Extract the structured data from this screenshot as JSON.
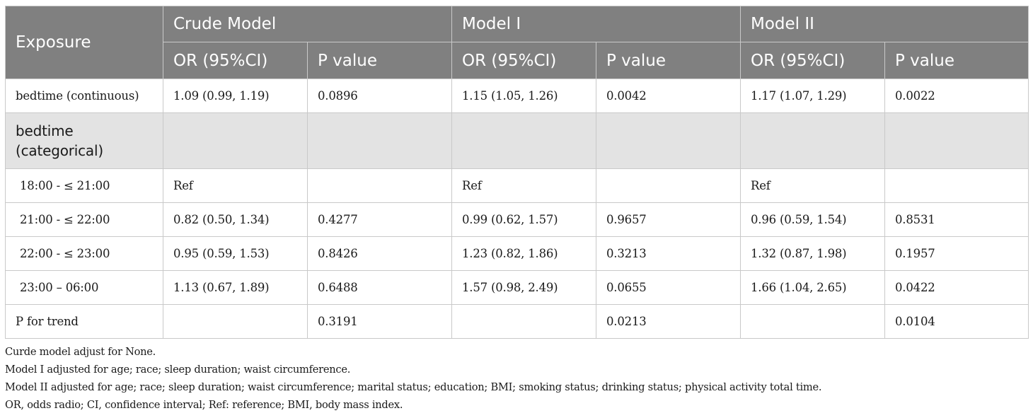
{
  "header": {
    "exposure": "Exposure",
    "models": [
      "Crude Model",
      "Model I",
      "Model II"
    ],
    "or_label": "OR (95%CI)",
    "p_label": "P value"
  },
  "rows": {
    "continuous": {
      "label": "bedtime (continuous)",
      "crude_or": "1.09 (0.99, 1.19)",
      "crude_p": "0.0896",
      "m1_or": "1.15 (1.05, 1.26)",
      "m1_p": "0.0042",
      "m2_or": "1.17 (1.07, 1.29)",
      "m2_p": "0.0022"
    },
    "categorical": {
      "label": "bedtime (categorical)"
    },
    "r1": {
      "label": "18:00 - ≤ 21:00",
      "crude_or": "Ref",
      "crude_p": "",
      "m1_or": "Ref",
      "m1_p": "",
      "m2_or": "Ref",
      "m2_p": ""
    },
    "r2": {
      "label": "21:00 - ≤ 22:00",
      "crude_or": "0.82 (0.50, 1.34)",
      "crude_p": "0.4277",
      "m1_or": "0.99 (0.62, 1.57)",
      "m1_p": "0.9657",
      "m2_or": "0.96 (0.59, 1.54)",
      "m2_p": "0.8531"
    },
    "r3": {
      "label": "22:00 - ≤ 23:00",
      "crude_or": "0.95 (0.59, 1.53)",
      "crude_p": "0.8426",
      "m1_or": "1.23 (0.82, 1.86)",
      "m1_p": "0.3213",
      "m2_or": "1.32 (0.87, 1.98)",
      "m2_p": "0.1957"
    },
    "r4": {
      "label": "23:00 – 06:00",
      "crude_or": "1.13 (0.67, 1.89)",
      "crude_p": "0.6488",
      "m1_or": "1.57 (0.98, 2.49)",
      "m1_p": "0.0655",
      "m2_or": "1.66 (1.04, 2.65)",
      "m2_p": "0.0422"
    },
    "trend": {
      "label": "P for trend",
      "crude_p": "0.3191",
      "m1_p": "0.0213",
      "m2_p": "0.0104"
    }
  },
  "notes": [
    "Curde model adjust for None.",
    "Model I adjusted for age; race; sleep duration; waist circumference.",
    "Model II adjusted for age; race; sleep duration; waist circumference; marital status; education; BMI; smoking status; drinking status; physical activity total time.",
    "OR, odds radio; CI, confidence interval; Ref: reference; BMI, body mass index."
  ],
  "colors": {
    "header_bg": "#808080",
    "header_text": "#ffffff",
    "group_row_bg": "#e3e3e3",
    "grid": "#c9c9c9"
  }
}
